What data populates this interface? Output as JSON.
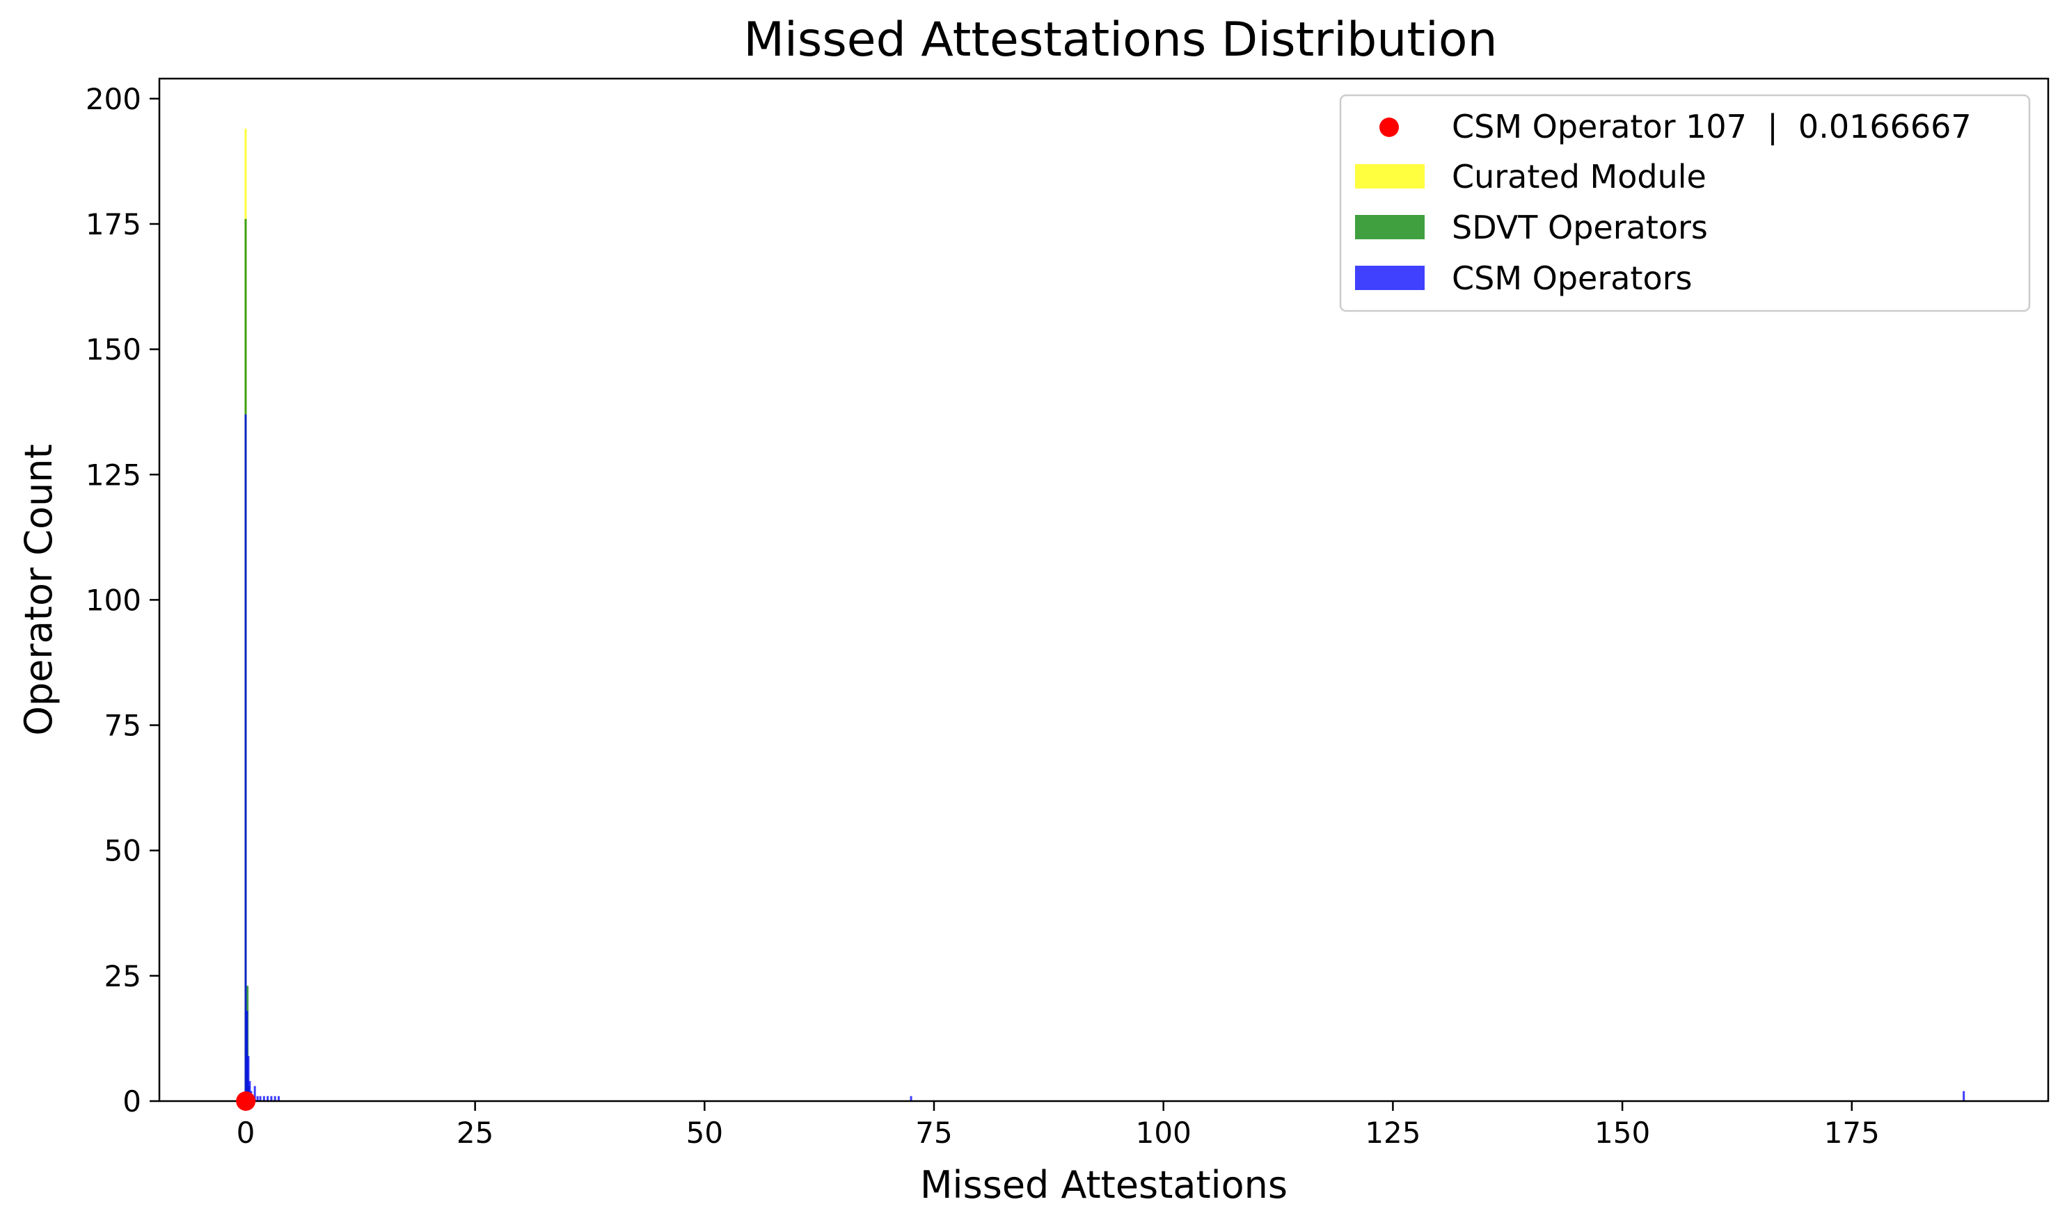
{
  "chart_data": {
    "type": "bar",
    "title": "Missed Attestations Distribution",
    "xlabel": "Missed Attestations",
    "ylabel": "Operator Count",
    "xlim": [
      -9.4,
      196.4
    ],
    "ylim": [
      0,
      204
    ],
    "xticks": [
      0,
      25,
      50,
      75,
      100,
      125,
      150,
      175
    ],
    "yticks": [
      0,
      25,
      50,
      75,
      100,
      125,
      150,
      175,
      200
    ],
    "grid": false,
    "legend_position": "top-right",
    "highlight": {
      "name": "CSM Operator 107  |  0.0166667",
      "x": 0.0166667,
      "y": 0,
      "color": "#ff0000"
    },
    "series": [
      {
        "name": "Curated Module",
        "color": "#ffff00",
        "opacity": 0.75,
        "bars": [
          {
            "x": 0.0,
            "y": 194
          },
          {
            "x": 0.2,
            "y": 5
          }
        ]
      },
      {
        "name": "SDVT Operators",
        "color": "#008000",
        "opacity": 0.75,
        "bars": [
          {
            "x": 0.0,
            "y": 176
          },
          {
            "x": 0.2,
            "y": 23
          },
          {
            "x": 0.35,
            "y": 3
          }
        ]
      },
      {
        "name": "CSM Operators",
        "color": "#0000ff",
        "opacity": 0.75,
        "bars": [
          {
            "x": 0.0,
            "y": 137
          },
          {
            "x": 0.15,
            "y": 18
          },
          {
            "x": 0.3,
            "y": 9
          },
          {
            "x": 0.45,
            "y": 4
          },
          {
            "x": 0.6,
            "y": 2
          },
          {
            "x": 1.0,
            "y": 3
          },
          {
            "x": 1.3,
            "y": 1
          },
          {
            "x": 1.6,
            "y": 1
          },
          {
            "x": 2.0,
            "y": 1
          },
          {
            "x": 2.4,
            "y": 1
          },
          {
            "x": 2.8,
            "y": 1
          },
          {
            "x": 3.2,
            "y": 1
          },
          {
            "x": 3.6,
            "y": 1
          },
          {
            "x": 72.5,
            "y": 1
          },
          {
            "x": 187.2,
            "y": 2
          }
        ]
      }
    ]
  }
}
